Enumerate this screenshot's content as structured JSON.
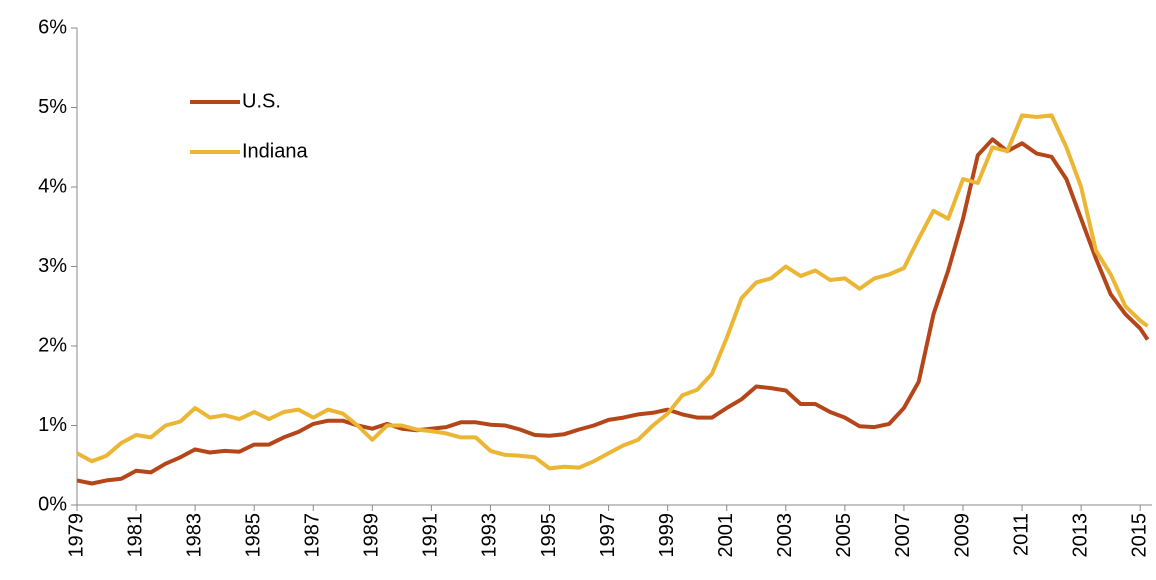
{
  "chart_data": {
    "type": "line",
    "x": [
      1979,
      1979.5,
      1980,
      1980.5,
      1981,
      1981.5,
      1982,
      1982.5,
      1983,
      1983.5,
      1984,
      1984.5,
      1985,
      1985.5,
      1986,
      1986.5,
      1987,
      1987.5,
      1988,
      1988.5,
      1989,
      1989.5,
      1990,
      1990.5,
      1991,
      1991.5,
      1992,
      1992.5,
      1993,
      1993.5,
      1994,
      1994.5,
      1995,
      1995.5,
      1996,
      1996.5,
      1997,
      1997.5,
      1998,
      1998.5,
      1999,
      1999.5,
      2000,
      2000.5,
      2001,
      2001.5,
      2002,
      2002.5,
      2003,
      2003.5,
      2004,
      2004.5,
      2005,
      2005.5,
      2006,
      2006.5,
      2007,
      2007.5,
      2008,
      2008.5,
      2009,
      2009.5,
      2010,
      2010.5,
      2011,
      2011.5,
      2012,
      2012.5,
      2013,
      2013.5,
      2014,
      2014.5,
      2015,
      2015.25
    ],
    "series": [
      {
        "name": "U.S.",
        "color": "#b5461a",
        "values": [
          0.31,
          0.27,
          0.31,
          0.33,
          0.43,
          0.41,
          0.52,
          0.6,
          0.7,
          0.66,
          0.68,
          0.67,
          0.76,
          0.76,
          0.85,
          0.92,
          1.02,
          1.06,
          1.06,
          1.0,
          0.96,
          1.02,
          0.96,
          0.94,
          0.96,
          0.98,
          1.04,
          1.04,
          1.01,
          1.0,
          0.95,
          0.88,
          0.87,
          0.89,
          0.95,
          1.0,
          1.07,
          1.1,
          1.14,
          1.16,
          1.2,
          1.14,
          1.1,
          1.1,
          1.22,
          1.33,
          1.49,
          1.47,
          1.44,
          1.27,
          1.27,
          1.17,
          1.1,
          0.99,
          0.98,
          1.02,
          1.22,
          1.55,
          2.4,
          2.95,
          3.6,
          4.4,
          4.6,
          4.45,
          4.55,
          4.42,
          4.38,
          4.1,
          3.6,
          3.1,
          2.65,
          2.4,
          2.22,
          2.08
        ]
      },
      {
        "name": "Indiana",
        "color": "#ebb634",
        "values": [
          0.65,
          0.55,
          0.62,
          0.78,
          0.88,
          0.85,
          1.0,
          1.05,
          1.22,
          1.1,
          1.13,
          1.08,
          1.17,
          1.08,
          1.17,
          1.2,
          1.1,
          1.2,
          1.15,
          1.0,
          0.82,
          1.0,
          1.0,
          0.95,
          0.93,
          0.9,
          0.85,
          0.85,
          0.68,
          0.63,
          0.62,
          0.6,
          0.46,
          0.48,
          0.47,
          0.55,
          0.65,
          0.75,
          0.82,
          1.0,
          1.15,
          1.38,
          1.45,
          1.65,
          2.1,
          2.6,
          2.8,
          2.85,
          3.0,
          2.88,
          2.95,
          2.83,
          2.85,
          2.72,
          2.85,
          2.9,
          2.98,
          3.35,
          3.7,
          3.6,
          4.1,
          4.05,
          4.5,
          4.45,
          4.9,
          4.88,
          4.9,
          4.5,
          4.0,
          3.2,
          2.9,
          2.5,
          2.32,
          2.25
        ]
      }
    ],
    "xlim": [
      1979,
      2015.4
    ],
    "xticks": [
      1979,
      1981,
      1983,
      1985,
      1987,
      1989,
      1991,
      1993,
      1995,
      1997,
      1999,
      2001,
      2003,
      2005,
      2007,
      2009,
      2011,
      2013,
      2015
    ],
    "ylim": [
      0,
      6
    ],
    "yticks": [
      {
        "value": 0,
        "label": "0%"
      },
      {
        "value": 1,
        "label": "1%"
      },
      {
        "value": 2,
        "label": "2%"
      },
      {
        "value": 3,
        "label": "3%"
      },
      {
        "value": 4,
        "label": "4%"
      },
      {
        "value": 5,
        "label": "5%"
      },
      {
        "value": 6,
        "label": "6%"
      }
    ],
    "legend": "upper-left"
  }
}
